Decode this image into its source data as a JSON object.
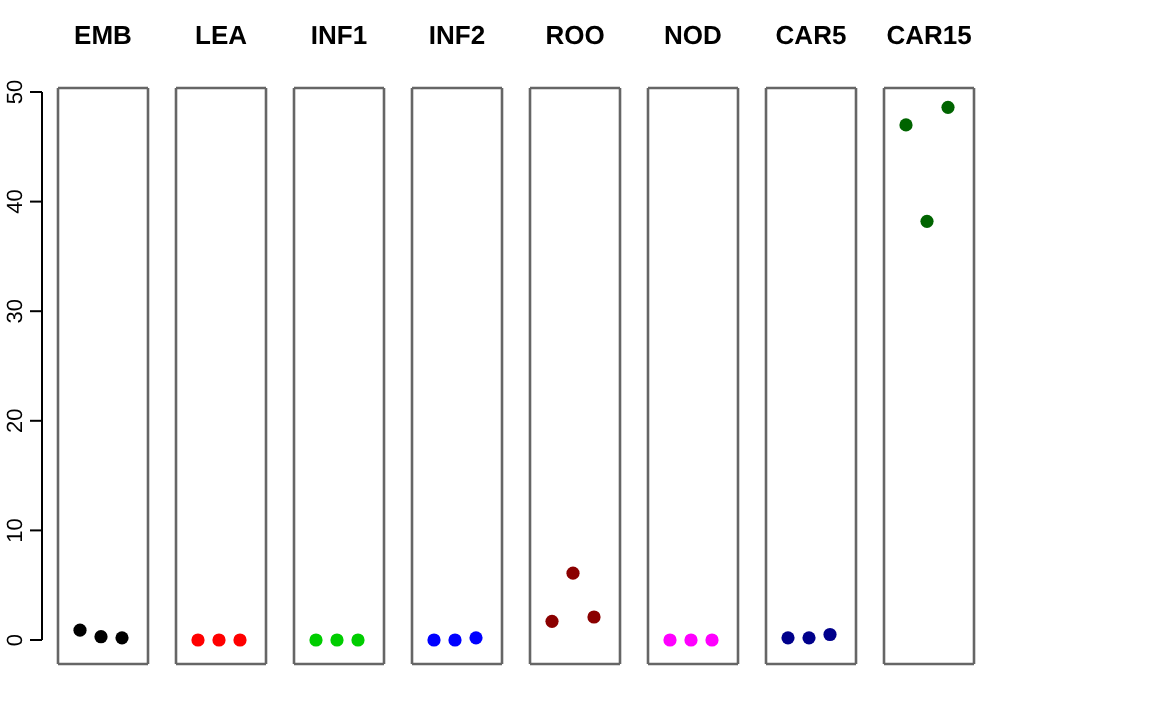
{
  "chart_data": {
    "type": "scatter",
    "categories": [
      "EMB",
      "LEA",
      "INF1",
      "INF2",
      "ROO",
      "NOD",
      "CAR5",
      "CAR15"
    ],
    "marker": "circle",
    "ylim": [
      0,
      50
    ],
    "yticks": [
      0,
      10,
      20,
      30,
      40,
      50
    ],
    "series": [
      {
        "colors": [
          "#000000",
          "#ff0000",
          "#00cd00",
          "#0000ff",
          "#8b0000",
          "#ff00ff",
          "#00008b",
          "#006400"
        ],
        "values": [
          0.9,
          0,
          0,
          0,
          1.7,
          0,
          0.2,
          47.0
        ]
      },
      {
        "colors": [
          "#000000",
          "#ff0000",
          "#00cd00",
          "#0000ff",
          "#8b0000",
          "#ff00ff",
          "#00008b",
          "#006400"
        ],
        "values": [
          0.3,
          0,
          0,
          0,
          6.1,
          0,
          0.2,
          38.2
        ]
      },
      {
        "colors": [
          "#000000",
          "#ff0000",
          "#00cd00",
          "#0000ff",
          "#8b0000",
          "#ff00ff",
          "#00008b",
          "#006400"
        ],
        "values": [
          0.2,
          0,
          0,
          0.2,
          2.1,
          0,
          0.5,
          48.6
        ]
      }
    ]
  }
}
